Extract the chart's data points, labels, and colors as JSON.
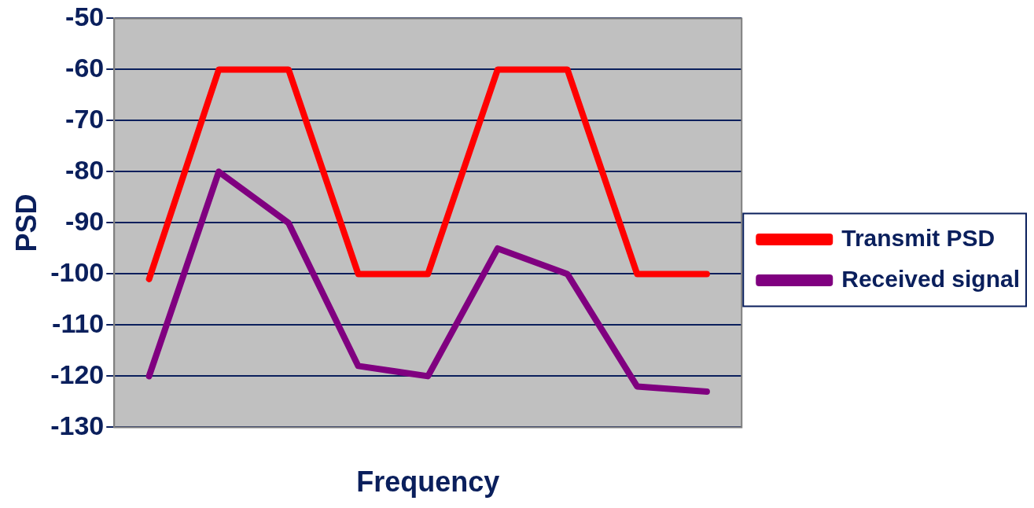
{
  "chart_data": {
    "type": "line",
    "xlabel": "Frequency",
    "ylabel": "PSD",
    "categories": [
      null,
      null,
      null,
      null,
      null,
      null,
      null,
      null,
      null
    ],
    "series": [
      {
        "name": "Transmit PSD",
        "color": "#ff0000",
        "values": [
          -101,
          -60,
          -60,
          -100,
          -100,
          -60,
          -60,
          -100,
          -100
        ]
      },
      {
        "name": "Received signal",
        "color": "#800080",
        "values": [
          -120,
          -80,
          -90,
          -118,
          -120,
          -95,
          -100,
          -122,
          -123
        ]
      }
    ],
    "ylim": [
      -130,
      -50
    ],
    "yticks": [
      -130,
      -120,
      -110,
      -100,
      -90,
      -80,
      -70,
      -60,
      -50
    ],
    "grid": "y",
    "legend": "right",
    "marker": "none",
    "line_style": "solid"
  }
}
